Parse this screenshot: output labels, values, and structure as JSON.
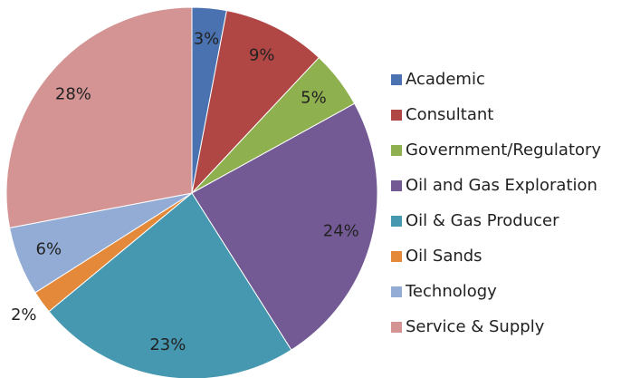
{
  "chart_data": {
    "type": "pie",
    "categories": [
      "Academic",
      "Consultant",
      "Government/Regulatory",
      "Oil and Gas Exploration",
      "Oil & Gas Producer",
      "Oil Sands",
      "Technology",
      "Service & Supply"
    ],
    "values": [
      3,
      9,
      5,
      24,
      23,
      2,
      6,
      28
    ],
    "value_labels": [
      "3%",
      "9%",
      "5%",
      "24%",
      "23%",
      "2%",
      "6%",
      "28%"
    ],
    "colors": [
      "#4a72b0",
      "#b04745",
      "#8fb04f",
      "#735a95",
      "#4598b0",
      "#e38939",
      "#93acd6",
      "#d39493"
    ],
    "legend": "right"
  }
}
